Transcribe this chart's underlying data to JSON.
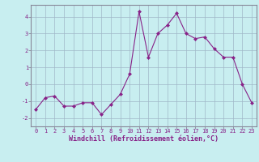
{
  "x": [
    0,
    1,
    2,
    3,
    4,
    5,
    6,
    7,
    8,
    9,
    10,
    11,
    12,
    13,
    14,
    15,
    16,
    17,
    18,
    19,
    20,
    21,
    22,
    23
  ],
  "y": [
    -1.5,
    -0.8,
    -0.7,
    -1.3,
    -1.3,
    -1.1,
    -1.1,
    -1.8,
    -1.2,
    -0.6,
    0.6,
    4.3,
    1.6,
    3.0,
    3.5,
    4.2,
    3.0,
    2.7,
    2.8,
    2.1,
    1.6,
    1.6,
    0.0,
    -1.1
  ],
  "line_color": "#882288",
  "marker": "D",
  "markersize": 2.0,
  "linewidth": 0.8,
  "bg_color": "#c8eef0",
  "grid_color": "#a0b8c8",
  "xlabel": "Windchill (Refroidissement éolien,°C)",
  "ylabel": "",
  "ylim": [
    -2.5,
    4.7
  ],
  "xlim": [
    -0.5,
    23.5
  ],
  "yticks": [
    -2,
    -1,
    0,
    1,
    2,
    3,
    4
  ],
  "xticks": [
    0,
    1,
    2,
    3,
    4,
    5,
    6,
    7,
    8,
    9,
    10,
    11,
    12,
    13,
    14,
    15,
    16,
    17,
    18,
    19,
    20,
    21,
    22,
    23
  ],
  "tick_fontsize": 5.0,
  "xlabel_fontsize": 6.0,
  "spine_color": "#888899"
}
